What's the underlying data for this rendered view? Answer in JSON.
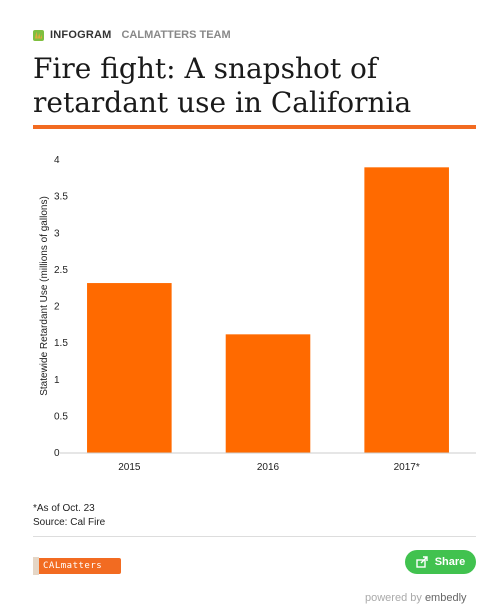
{
  "header": {
    "brand": "INFOGRAM",
    "team": "CALMATTERS TEAM"
  },
  "title": "Fire fight: A snapshot of retardant use in California",
  "chart_data": {
    "type": "bar",
    "categories": [
      "2015",
      "2016",
      "2017*"
    ],
    "values": [
      2.32,
      1.62,
      3.9
    ],
    "ylabel": "Statewide Retardant Use (millions of gallons)",
    "xlabel": "",
    "ylim": [
      0,
      4
    ],
    "yticks": [
      "0",
      "0.5",
      "1",
      "1.5",
      "2",
      "2.5",
      "3",
      "3.5",
      "4"
    ],
    "grid": false,
    "bar_color": "#ff6a00"
  },
  "footnote": {
    "note": "*As of Oct. 23",
    "source": "Source: Cal Fire"
  },
  "footer": {
    "logo_text": "CALmatters",
    "share_label": "Share",
    "powered_prefix": "powered by",
    "powered_brand": "embedly"
  },
  "colors": {
    "accent": "#f26b21",
    "share": "#41c24f"
  }
}
